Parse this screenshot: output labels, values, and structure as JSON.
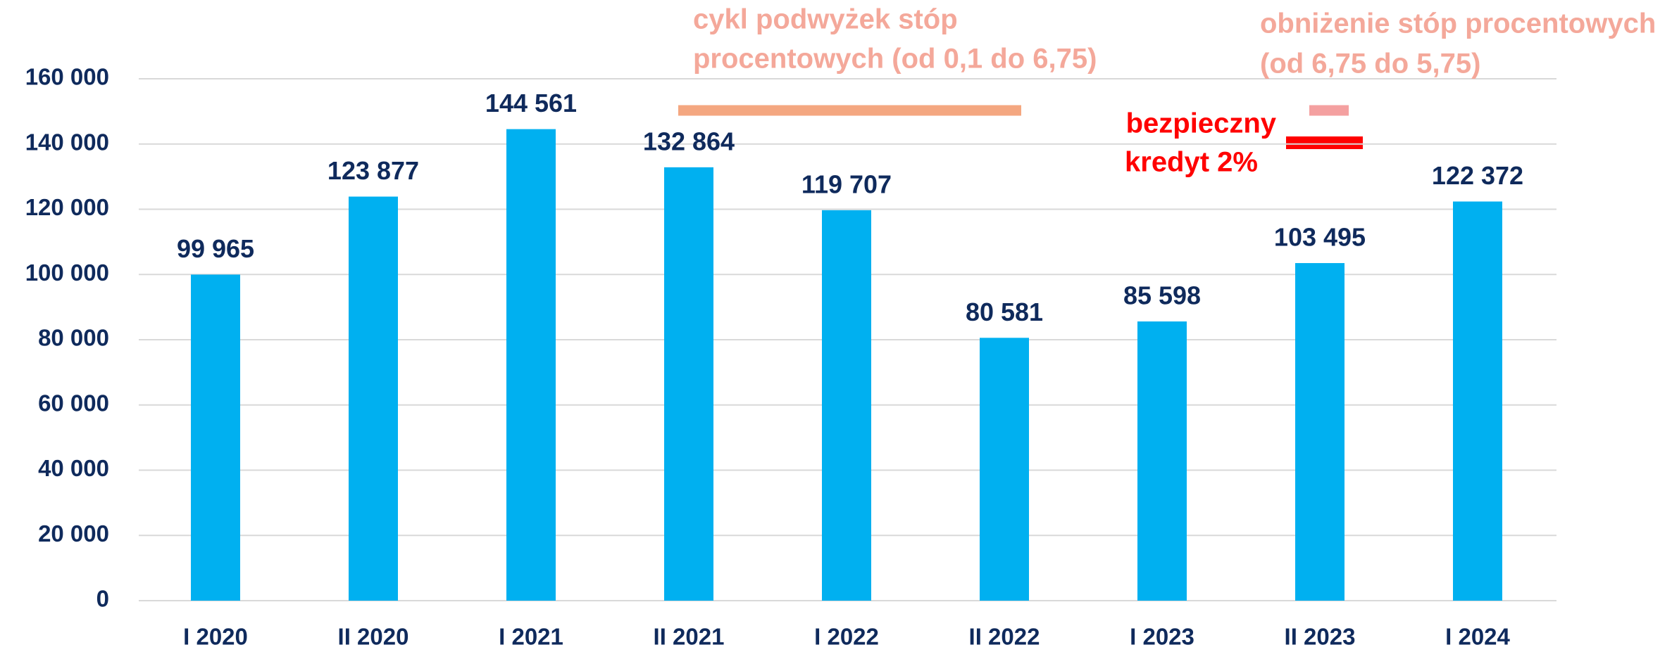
{
  "chart_data": {
    "type": "bar",
    "categories": [
      "I 2020",
      "II 2020",
      "I 2021",
      "II 2021",
      "I 2022",
      "II 2022",
      "I 2023",
      "II 2023",
      "I 2024"
    ],
    "values": [
      99965,
      123877,
      144561,
      132864,
      119707,
      80581,
      85598,
      103495,
      122372
    ],
    "value_labels": [
      "99 965",
      "123 877",
      "144 561",
      "132 864",
      "119 707",
      "80 581",
      "85 598",
      "103 495",
      "122 372"
    ],
    "color": "#00b0f0",
    "ylim": [
      0,
      160000
    ],
    "yticks": [
      0,
      {
        "value": 20000,
        "label": "20 000"
      },
      {
        "value": 40000,
        "label": "40 000"
      },
      {
        "value": 60000,
        "label": "60 000"
      },
      {
        "value": 80000,
        "label": "80 000"
      },
      {
        "value": 100000,
        "label": "100 000"
      },
      {
        "value": 120000,
        "label": "120 000"
      },
      {
        "value": 140000,
        "label": "140 000"
      },
      {
        "value": 160000,
        "label": "160 000"
      }
    ],
    "grid": true,
    "annotations": [
      {
        "lines": [
          "cykl podwyżek stóp",
          "procentowych (od 0,1 do 6,75)"
        ],
        "color": "#f4a89a"
      },
      {
        "lines": [
          "obniżenie stóp procentowych",
          "(od 6,75 do 5,75)"
        ],
        "color": "#f4a89a"
      },
      {
        "lines": [
          "bezpieczny",
          "kredyt 2%"
        ],
        "color": "#ff0000"
      }
    ]
  }
}
